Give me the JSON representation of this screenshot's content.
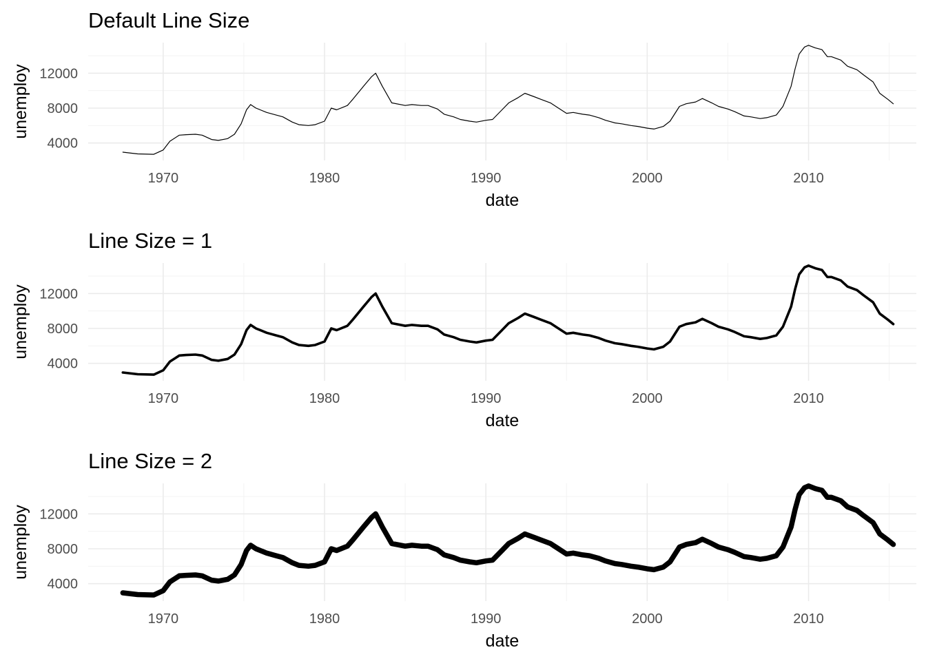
{
  "chart_data": [
    {
      "type": "line",
      "title": "Default Line Size",
      "xlabel": "date",
      "ylabel": "unemploy",
      "x_ticks": [
        "1970",
        "1980",
        "1990",
        "2000",
        "2010"
      ],
      "y_ticks": [
        "4000",
        "8000",
        "12000"
      ],
      "xlim": [
        "1967-07-01",
        "2015-04-01"
      ],
      "ylim": [
        2000,
        15500
      ],
      "grid": true,
      "line_color": "#000000",
      "line_size": "default",
      "series": [
        {
          "x": [
            "1967-07-01",
            "1968-06-01",
            "1969-06-01",
            "1970-01-01",
            "1970-06-01",
            "1971-01-01",
            "1971-06-01",
            "1972-01-01",
            "1972-06-01",
            "1973-01-01",
            "1973-06-01",
            "1974-01-01",
            "1974-06-01",
            "1974-11-01",
            "1975-03-01",
            "1975-06-01",
            "1975-10-01",
            "1976-06-01",
            "1977-01-01",
            "1977-06-01",
            "1978-01-01",
            "1978-06-01",
            "1979-01-01",
            "1979-06-01",
            "1980-01-01",
            "1980-06-01",
            "1980-10-01",
            "1981-06-01",
            "1981-10-01",
            "1982-06-01",
            "1982-12-01",
            "1983-03-01",
            "1983-08-01",
            "1984-03-01",
            "1985-01-01",
            "1985-06-01",
            "1986-01-01",
            "1986-06-01",
            "1987-01-01",
            "1987-06-01",
            "1988-01-01",
            "1988-06-01",
            "1989-01-01",
            "1989-06-01",
            "1990-01-01",
            "1990-06-01",
            "1991-01-01",
            "1991-06-01",
            "1992-01-01",
            "1992-06-01",
            "1993-01-01",
            "1993-06-01",
            "1994-01-01",
            "1994-06-01",
            "1995-01-01",
            "1995-06-01",
            "1996-01-01",
            "1996-06-01",
            "1997-01-01",
            "1997-06-01",
            "1998-01-01",
            "1998-06-01",
            "1999-01-01",
            "1999-06-01",
            "2000-01-01",
            "2000-06-01",
            "2001-01-01",
            "2001-06-01",
            "2002-01-01",
            "2002-06-01",
            "2003-01-01",
            "2003-06-01",
            "2004-01-01",
            "2004-06-01",
            "2005-01-01",
            "2005-06-01",
            "2006-01-01",
            "2006-06-01",
            "2007-01-01",
            "2007-06-01",
            "2008-01-01",
            "2008-06-01",
            "2008-12-01",
            "2009-03-01",
            "2009-06-01",
            "2009-10-01",
            "2010-01-01",
            "2010-06-01",
            "2010-11-01",
            "2011-03-01",
            "2011-06-01",
            "2012-01-01",
            "2012-06-01",
            "2013-01-01",
            "2013-06-01",
            "2014-01-01",
            "2014-06-01",
            "2014-12-01",
            "2015-04-01"
          ],
          "y": [
            2950,
            2750,
            2700,
            3200,
            4200,
            4900,
            4950,
            5000,
            4900,
            4400,
            4300,
            4500,
            5000,
            6200,
            7800,
            8400,
            8000,
            7500,
            7200,
            7000,
            6400,
            6100,
            6000,
            6100,
            6500,
            8000,
            7800,
            8300,
            9000,
            10500,
            11600,
            12000,
            10500,
            8600,
            8300,
            8400,
            8300,
            8300,
            7900,
            7300,
            7000,
            6700,
            6500,
            6400,
            6600,
            6700,
            7800,
            8600,
            9200,
            9700,
            9300,
            9000,
            8600,
            8100,
            7400,
            7500,
            7300,
            7200,
            6900,
            6600,
            6300,
            6200,
            6000,
            5900,
            5700,
            5600,
            5900,
            6500,
            8200,
            8500,
            8700,
            9100,
            8600,
            8200,
            7900,
            7600,
            7100,
            7000,
            6800,
            6900,
            7200,
            8200,
            10500,
            12500,
            14200,
            15000,
            15200,
            14900,
            14700,
            13900,
            13900,
            13500,
            12800,
            12400,
            11800,
            11000,
            9700,
            9000,
            8500
          ]
        }
      ]
    },
    {
      "type": "line",
      "title": "Line Size = 1",
      "xlabel": "date",
      "ylabel": "unemploy",
      "x_ticks": [
        "1970",
        "1980",
        "1990",
        "2000",
        "2010"
      ],
      "y_ticks": [
        "4000",
        "8000",
        "12000"
      ],
      "xlim": [
        "1967-07-01",
        "2015-04-01"
      ],
      "ylim": [
        2000,
        15500
      ],
      "grid": true,
      "line_color": "#000000",
      "line_size": 1,
      "series": [
        {
          "x": [
            "1967-07-01",
            "1968-06-01",
            "1969-06-01",
            "1970-01-01",
            "1970-06-01",
            "1971-01-01",
            "1971-06-01",
            "1972-01-01",
            "1972-06-01",
            "1973-01-01",
            "1973-06-01",
            "1974-01-01",
            "1974-06-01",
            "1974-11-01",
            "1975-03-01",
            "1975-06-01",
            "1975-10-01",
            "1976-06-01",
            "1977-01-01",
            "1977-06-01",
            "1978-01-01",
            "1978-06-01",
            "1979-01-01",
            "1979-06-01",
            "1980-01-01",
            "1980-06-01",
            "1980-10-01",
            "1981-06-01",
            "1981-10-01",
            "1982-06-01",
            "1982-12-01",
            "1983-03-01",
            "1983-08-01",
            "1984-03-01",
            "1985-01-01",
            "1985-06-01",
            "1986-01-01",
            "1986-06-01",
            "1987-01-01",
            "1987-06-01",
            "1988-01-01",
            "1988-06-01",
            "1989-01-01",
            "1989-06-01",
            "1990-01-01",
            "1990-06-01",
            "1991-01-01",
            "1991-06-01",
            "1992-01-01",
            "1992-06-01",
            "1993-01-01",
            "1993-06-01",
            "1994-01-01",
            "1994-06-01",
            "1995-01-01",
            "1995-06-01",
            "1996-01-01",
            "1996-06-01",
            "1997-01-01",
            "1997-06-01",
            "1998-01-01",
            "1998-06-01",
            "1999-01-01",
            "1999-06-01",
            "2000-01-01",
            "2000-06-01",
            "2001-01-01",
            "2001-06-01",
            "2002-01-01",
            "2002-06-01",
            "2003-01-01",
            "2003-06-01",
            "2004-01-01",
            "2004-06-01",
            "2005-01-01",
            "2005-06-01",
            "2006-01-01",
            "2006-06-01",
            "2007-01-01",
            "2007-06-01",
            "2008-01-01",
            "2008-06-01",
            "2008-12-01",
            "2009-03-01",
            "2009-06-01",
            "2009-10-01",
            "2010-01-01",
            "2010-06-01",
            "2010-11-01",
            "2011-03-01",
            "2011-06-01",
            "2012-01-01",
            "2012-06-01",
            "2013-01-01",
            "2013-06-01",
            "2014-01-01",
            "2014-06-01",
            "2014-12-01",
            "2015-04-01"
          ],
          "y": [
            2950,
            2750,
            2700,
            3200,
            4200,
            4900,
            4950,
            5000,
            4900,
            4400,
            4300,
            4500,
            5000,
            6200,
            7800,
            8400,
            8000,
            7500,
            7200,
            7000,
            6400,
            6100,
            6000,
            6100,
            6500,
            8000,
            7800,
            8300,
            9000,
            10500,
            11600,
            12000,
            10500,
            8600,
            8300,
            8400,
            8300,
            8300,
            7900,
            7300,
            7000,
            6700,
            6500,
            6400,
            6600,
            6700,
            7800,
            8600,
            9200,
            9700,
            9300,
            9000,
            8600,
            8100,
            7400,
            7500,
            7300,
            7200,
            6900,
            6600,
            6300,
            6200,
            6000,
            5900,
            5700,
            5600,
            5900,
            6500,
            8200,
            8500,
            8700,
            9100,
            8600,
            8200,
            7900,
            7600,
            7100,
            7000,
            6800,
            6900,
            7200,
            8200,
            10500,
            12500,
            14200,
            15000,
            15200,
            14900,
            14700,
            13900,
            13900,
            13500,
            12800,
            12400,
            11800,
            11000,
            9700,
            9000,
            8500
          ]
        }
      ]
    },
    {
      "type": "line",
      "title": "Line Size = 2",
      "xlabel": "date",
      "ylabel": "unemploy",
      "x_ticks": [
        "1970",
        "1980",
        "1990",
        "2000",
        "2010"
      ],
      "y_ticks": [
        "4000",
        "8000",
        "12000"
      ],
      "xlim": [
        "1967-07-01",
        "2015-04-01"
      ],
      "ylim": [
        2000,
        15500
      ],
      "grid": true,
      "line_color": "#000000",
      "line_size": 2,
      "series": [
        {
          "x": [
            "1967-07-01",
            "1968-06-01",
            "1969-06-01",
            "1970-01-01",
            "1970-06-01",
            "1971-01-01",
            "1971-06-01",
            "1972-01-01",
            "1972-06-01",
            "1973-01-01",
            "1973-06-01",
            "1974-01-01",
            "1974-06-01",
            "1974-11-01",
            "1975-03-01",
            "1975-06-01",
            "1975-10-01",
            "1976-06-01",
            "1977-01-01",
            "1977-06-01",
            "1978-01-01",
            "1978-06-01",
            "1979-01-01",
            "1979-06-01",
            "1980-01-01",
            "1980-06-01",
            "1980-10-01",
            "1981-06-01",
            "1981-10-01",
            "1982-06-01",
            "1982-12-01",
            "1983-03-01",
            "1983-08-01",
            "1984-03-01",
            "1985-01-01",
            "1985-06-01",
            "1986-01-01",
            "1986-06-01",
            "1987-01-01",
            "1987-06-01",
            "1988-01-01",
            "1988-06-01",
            "1989-01-01",
            "1989-06-01",
            "1990-01-01",
            "1990-06-01",
            "1991-01-01",
            "1991-06-01",
            "1992-01-01",
            "1992-06-01",
            "1993-01-01",
            "1993-06-01",
            "1994-01-01",
            "1994-06-01",
            "1995-01-01",
            "1995-06-01",
            "1996-01-01",
            "1996-06-01",
            "1997-01-01",
            "1997-06-01",
            "1998-01-01",
            "1998-06-01",
            "1999-01-01",
            "1999-06-01",
            "2000-01-01",
            "2000-06-01",
            "2001-01-01",
            "2001-06-01",
            "2002-01-01",
            "2002-06-01",
            "2003-01-01",
            "2003-06-01",
            "2004-01-01",
            "2004-06-01",
            "2005-01-01",
            "2005-06-01",
            "2006-01-01",
            "2006-06-01",
            "2007-01-01",
            "2007-06-01",
            "2008-01-01",
            "2008-06-01",
            "2008-12-01",
            "2009-03-01",
            "2009-06-01",
            "2009-10-01",
            "2010-01-01",
            "2010-06-01",
            "2010-11-01",
            "2011-03-01",
            "2011-06-01",
            "2012-01-01",
            "2012-06-01",
            "2013-01-01",
            "2013-06-01",
            "2014-01-01",
            "2014-06-01",
            "2014-12-01",
            "2015-04-01"
          ],
          "y": [
            2950,
            2750,
            2700,
            3200,
            4200,
            4900,
            4950,
            5000,
            4900,
            4400,
            4300,
            4500,
            5000,
            6200,
            7800,
            8400,
            8000,
            7500,
            7200,
            7000,
            6400,
            6100,
            6000,
            6100,
            6500,
            8000,
            7800,
            8300,
            9000,
            10500,
            11600,
            12000,
            10500,
            8600,
            8300,
            8400,
            8300,
            8300,
            7900,
            7300,
            7000,
            6700,
            6500,
            6400,
            6600,
            6700,
            7800,
            8600,
            9200,
            9700,
            9300,
            9000,
            8600,
            8100,
            7400,
            7500,
            7300,
            7200,
            6900,
            6600,
            6300,
            6200,
            6000,
            5900,
            5700,
            5600,
            5900,
            6500,
            8200,
            8500,
            8700,
            9100,
            8600,
            8200,
            7900,
            7600,
            7100,
            7000,
            6800,
            6900,
            7200,
            8200,
            10500,
            12500,
            14200,
            15000,
            15200,
            14900,
            14700,
            13900,
            13900,
            13500,
            12800,
            12400,
            11800,
            11000,
            9700,
            9000,
            8500
          ]
        }
      ]
    }
  ]
}
